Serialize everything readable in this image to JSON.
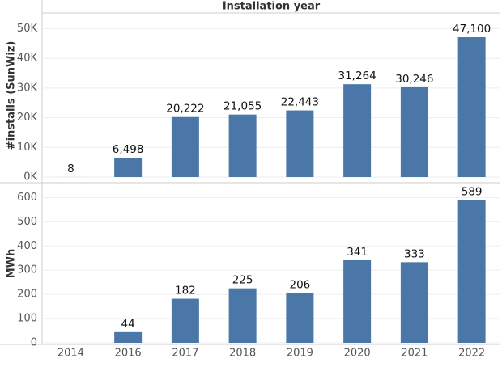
{
  "chart_data": {
    "type": "bar",
    "title": "Installation year",
    "categories": [
      "2014",
      "2016",
      "2017",
      "2018",
      "2019",
      "2020",
      "2021",
      "2022"
    ],
    "color": "#4b77a8",
    "grid": true,
    "panels": [
      {
        "ylabel": "#installs (SunWiz)",
        "values": [
          8,
          6498,
          20222,
          21055,
          22443,
          31264,
          30246,
          47100
        ],
        "value_labels": [
          "8",
          "6,498",
          "20,222",
          "21,055",
          "22,443",
          "31,264",
          "30,246",
          "47,100"
        ],
        "ylim": [
          0,
          55000
        ],
        "yticks": [
          {
            "value": 0,
            "label": "0K"
          },
          {
            "value": 10000,
            "label": "10K"
          },
          {
            "value": 20000,
            "label": "20K"
          },
          {
            "value": 30000,
            "label": "30K"
          },
          {
            "value": 40000,
            "label": "40K"
          },
          {
            "value": 50000,
            "label": "50K"
          }
        ]
      },
      {
        "ylabel": "MWh",
        "values": [
          null,
          44,
          182,
          225,
          206,
          341,
          333,
          589
        ],
        "ylim": [
          0,
          655
        ],
        "yticks": [
          0,
          100,
          200,
          300,
          400,
          500,
          600
        ]
      }
    ]
  }
}
